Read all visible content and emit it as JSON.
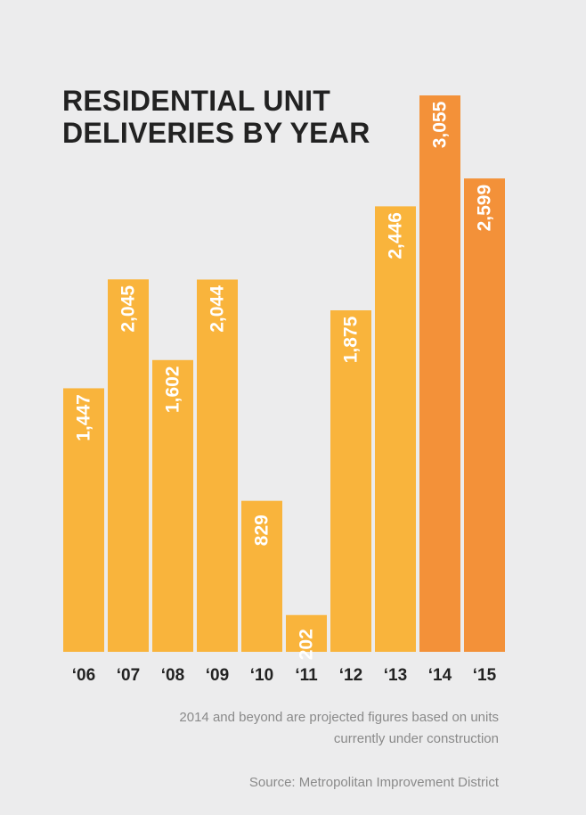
{
  "chart_data": {
    "type": "bar",
    "title_lines": [
      "RESIDENTIAL UNIT",
      "DELIVERIES BY YEAR"
    ],
    "categories": [
      "‘06",
      "‘07",
      "‘08",
      "‘09",
      "‘10",
      "‘11",
      "‘12",
      "‘13",
      "‘14",
      "‘15"
    ],
    "values": [
      1447,
      2045,
      1602,
      2044,
      829,
      202,
      1875,
      2446,
      3055,
      2599
    ],
    "value_labels": [
      "1,447",
      "2,045",
      "1,602",
      "2,044",
      "829",
      "202",
      "1,875",
      "2,446",
      "3,055",
      "2,599"
    ],
    "projected": [
      false,
      false,
      false,
      false,
      false,
      false,
      false,
      false,
      true,
      true
    ],
    "ylim": [
      0,
      3055
    ],
    "xlabel": "",
    "ylabel": "",
    "grid": false,
    "colors": {
      "actual": "#f9b43c",
      "projected": "#f39139",
      "label": "#ffffff",
      "axis_text": "#222222"
    }
  },
  "note_lines": [
    "2014 and beyond are projected figures based on units",
    "currently under construction"
  ],
  "source": "Source: Metropolitan Improvement District"
}
